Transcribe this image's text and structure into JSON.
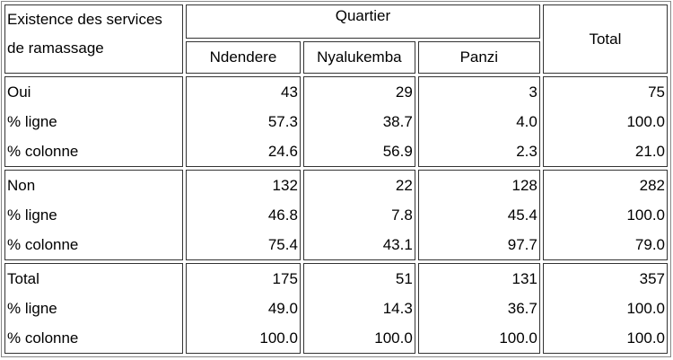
{
  "header": {
    "row_label": "Existence des services de ramassage",
    "group": "Quartier",
    "columns": [
      "Ndendere",
      "Nyalukemba",
      "Panzi"
    ],
    "total": "Total"
  },
  "groups": [
    {
      "rows": [
        {
          "label": "Oui",
          "values": [
            "43",
            "29",
            "3",
            "75"
          ]
        },
        {
          "label": "% ligne",
          "values": [
            "57.3",
            "38.7",
            "4.0",
            "100.0"
          ]
        },
        {
          "label": "% colonne",
          "values": [
            "24.6",
            "56.9",
            "2.3",
            "21.0"
          ]
        }
      ]
    },
    {
      "rows": [
        {
          "label": "Non",
          "values": [
            "132",
            "22",
            "128",
            "282"
          ]
        },
        {
          "label": "% ligne",
          "values": [
            "46.8",
            "7.8",
            "45.4",
            "100.0"
          ]
        },
        {
          "label": "% colonne",
          "values": [
            "75.4",
            "43.1",
            "97.7",
            "79.0"
          ]
        }
      ]
    },
    {
      "rows": [
        {
          "label": "Total",
          "values": [
            "175",
            "51",
            "131",
            "357"
          ]
        },
        {
          "label": "% ligne",
          "values": [
            "49.0",
            "14.3",
            "36.7",
            "100.0"
          ]
        },
        {
          "label": "% colonne",
          "values": [
            "100.0",
            "100.0",
            "100.0",
            "100.0"
          ]
        }
      ]
    }
  ]
}
